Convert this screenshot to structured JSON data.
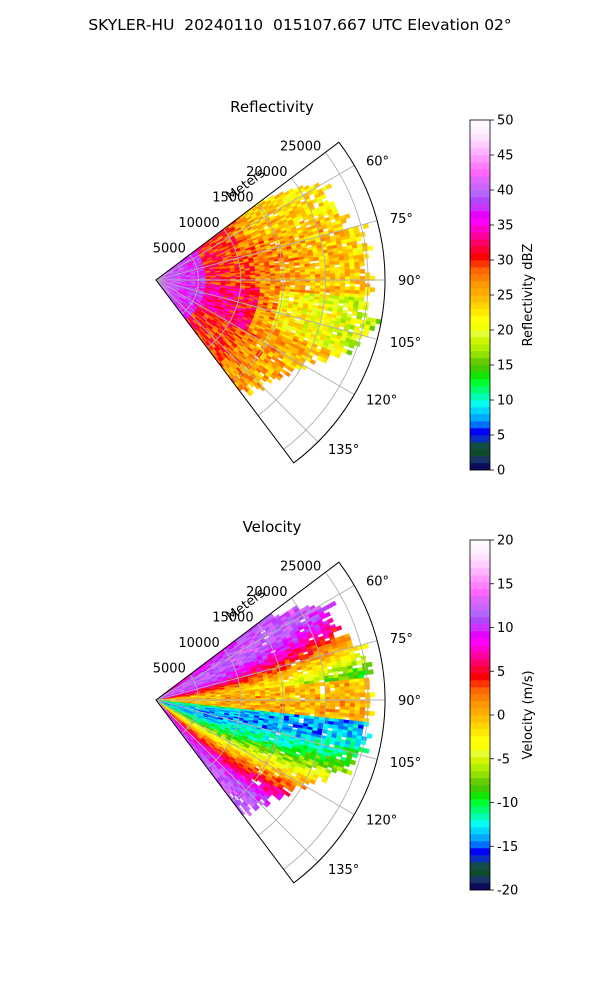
{
  "figure": {
    "suptitle": "SKYLER-HU  20240110  015107.667 UTC Elevation 02°"
  },
  "chart_data": [
    {
      "type": "heatmap",
      "title": "Reflectivity",
      "projection": "polar",
      "range_label": "Meters",
      "range_ticks": [
        5000,
        10000,
        15000,
        20000,
        25000
      ],
      "azimuth_ticks": [
        60,
        75,
        90,
        105,
        120,
        135
      ],
      "azimuth_tick_labels": [
        "60°",
        "75°",
        "90°",
        "105°",
        "120°",
        "135°"
      ],
      "azimuth_range": [
        53,
        143
      ],
      "range_max": 27000,
      "colorbar": {
        "label": "Reflectivity dBZ",
        "vmin": 0,
        "vmax": 50,
        "ticks": [
          0,
          5,
          10,
          15,
          20,
          25,
          30,
          35,
          40,
          45,
          50
        ],
        "colors": [
          "#0b0b5e",
          "#1a3366",
          "#0d4d2e",
          "#134d47",
          "#0a2fc0",
          "#0000ff",
          "#0070ff",
          "#00aaff",
          "#00d5ff",
          "#00fff0",
          "#00ffb0",
          "#00ff70",
          "#00ff30",
          "#10e600",
          "#40cc00",
          "#66cc00",
          "#90e000",
          "#b0f000",
          "#d0f500",
          "#e6ff33",
          "#f5ff00",
          "#ffff00",
          "#ffea00",
          "#ffd400",
          "#ffbf00",
          "#ffaa00",
          "#ff9900",
          "#ff8000",
          "#ff6600",
          "#ff3300",
          "#ff0000",
          "#ff0033",
          "#ff0066",
          "#ff00a0",
          "#ff00d0",
          "#ff00ff",
          "#e600ff",
          "#cc33ff",
          "#b347ff",
          "#b366ff",
          "#cc66ff",
          "#e066ff",
          "#ff66ff",
          "#ff80ff",
          "#ff99ff",
          "#ffb3ff",
          "#ffccff",
          "#ffe0ff",
          "#fff0ff",
          "#fff8ff"
        ]
      }
    },
    {
      "type": "heatmap",
      "title": "Velocity",
      "projection": "polar",
      "range_label": "Meters",
      "range_ticks": [
        5000,
        10000,
        15000,
        20000,
        25000
      ],
      "azimuth_ticks": [
        60,
        75,
        90,
        105,
        120,
        135
      ],
      "azimuth_tick_labels": [
        "60°",
        "75°",
        "90°",
        "105°",
        "120°",
        "135°"
      ],
      "azimuth_range": [
        53,
        143
      ],
      "range_max": 27000,
      "colorbar": {
        "label": "Velocity (m/s)",
        "vmin": -20,
        "vmax": 20,
        "ticks": [
          -20,
          -15,
          -10,
          -5,
          0,
          5,
          10,
          15,
          20
        ],
        "colors": [
          "#0b0b5e",
          "#1a3366",
          "#0d4d2e",
          "#134d47",
          "#0a2fc0",
          "#0000ff",
          "#0070ff",
          "#00aaff",
          "#00d5ff",
          "#00fff0",
          "#00ffb0",
          "#00ff70",
          "#00ff30",
          "#10e600",
          "#40cc00",
          "#66cc00",
          "#90e000",
          "#b0f000",
          "#d0f500",
          "#e6ff33",
          "#f5ff00",
          "#ffff00",
          "#ffea00",
          "#ffd400",
          "#ffbf00",
          "#ffaa00",
          "#ff9900",
          "#ff8000",
          "#ff6600",
          "#ff3300",
          "#ff0000",
          "#ff0033",
          "#ff0066",
          "#ff00a0",
          "#ff00d0",
          "#ff00ff",
          "#e600ff",
          "#cc33ff",
          "#b347ff",
          "#b366ff",
          "#cc66ff",
          "#e066ff",
          "#ff66ff",
          "#ff80ff",
          "#ff99ff",
          "#ffb3ff",
          "#ffccff",
          "#ffe0ff",
          "#fff0ff",
          "#fff8ff"
        ]
      }
    }
  ]
}
